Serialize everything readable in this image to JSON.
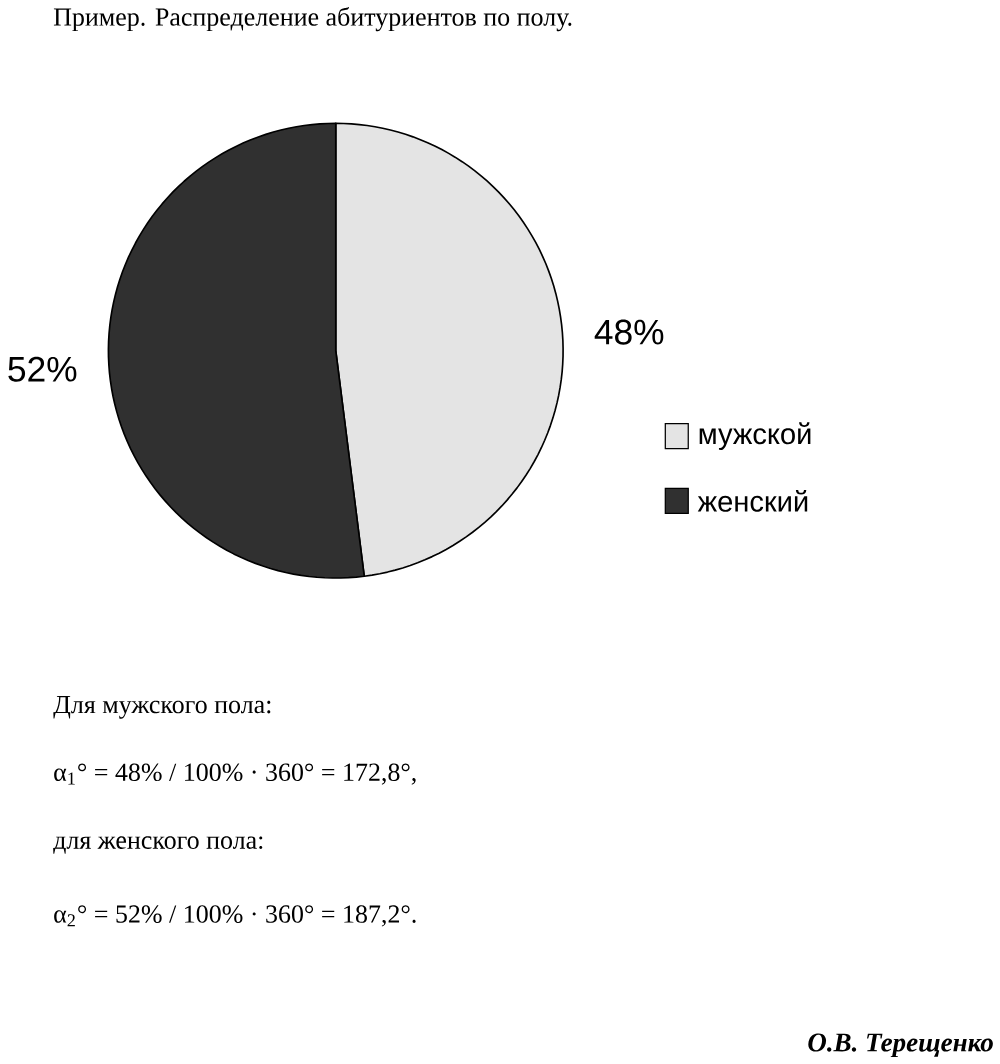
{
  "chart_data": {
    "type": "pie",
    "title": "Пример. Распределение абитуриентов по полу.",
    "categories": [
      "мужской",
      "женский"
    ],
    "values": [
      48,
      52
    ],
    "colors": [
      "#e4e4e4",
      "#303030"
    ],
    "value_labels": [
      "48%",
      "52%"
    ],
    "legend": "right",
    "annotations": [
      "Для мужского пола:",
      "α$_{1}$° = 48% / 100% · 360° = 172,8°,",
      "для женского пола:",
      "α$_{2}$° = 52% / 100% · 360° = 187,2°.",
      "О.В. Терещенко"
    ]
  }
}
